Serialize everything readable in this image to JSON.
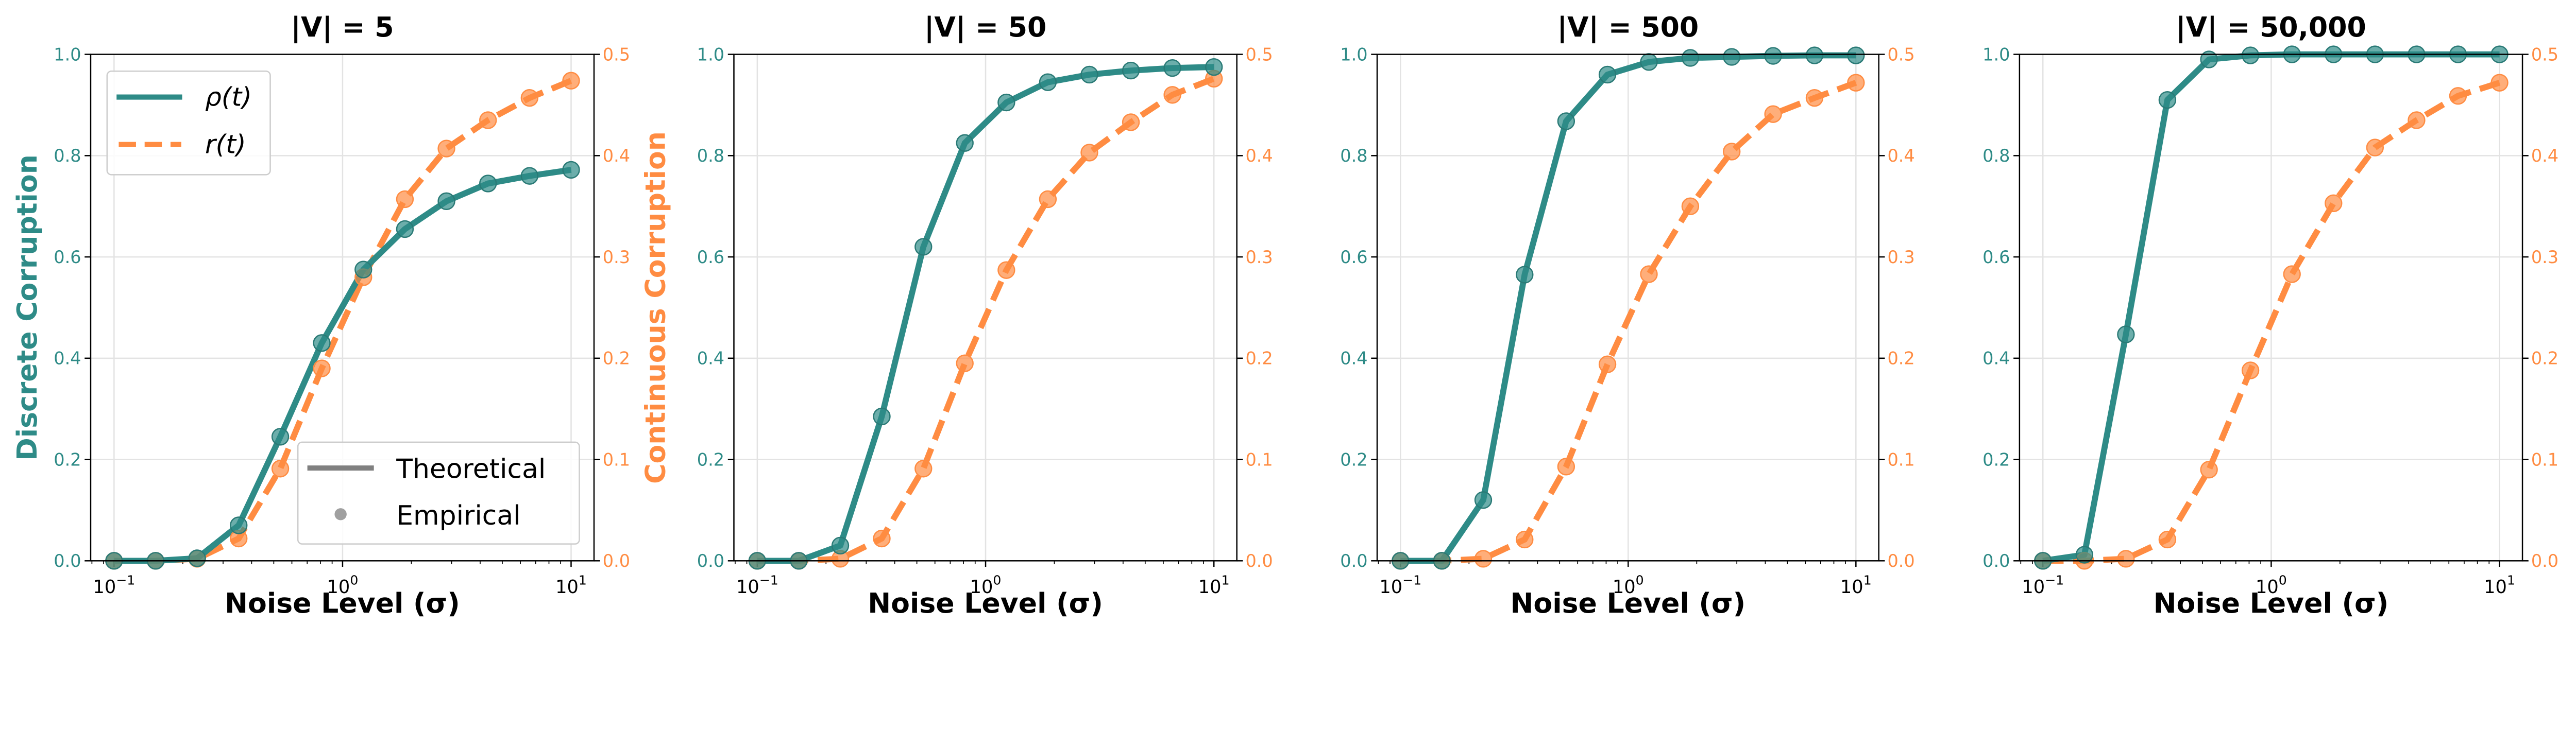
{
  "chart_data": {
    "type": "line",
    "shared": {
      "x": [
        0.1,
        0.152,
        0.231,
        0.351,
        0.534,
        0.811,
        1.233,
        1.874,
        2.848,
        4.329,
        6.579,
        10
      ],
      "xlabel": "Noise Level (σ)",
      "x_scale": "log",
      "xlim": [
        0.079,
        12.6
      ],
      "xticks": [
        {
          "base": "10",
          "exp": "−1",
          "value": 0.1
        },
        {
          "base": "10",
          "exp": "0",
          "value": 1
        },
        {
          "base": "10",
          "exp": "1",
          "value": 10
        }
      ],
      "ylabel_left": "Discrete Corruption",
      "ylabel_right": "Continuous Corruption",
      "ylim_left": [
        0,
        1.0
      ],
      "ylim_right": [
        0,
        0.5
      ],
      "yticks_left": [
        "0.0",
        "0.2",
        "0.4",
        "0.6",
        "0.8",
        "1.0"
      ],
      "yticks_right": [
        "0.0",
        "0.1",
        "0.2",
        "0.3",
        "0.4",
        "0.5"
      ],
      "grid": true,
      "colors": {
        "discrete": "#2e8b87",
        "continuous": "#ff8c42"
      }
    },
    "legend": {
      "series_entries": [
        "ρ(t)",
        "r(t)"
      ],
      "style_entries": [
        "Theoretical",
        "Empirical"
      ],
      "placement": [
        "upper-left",
        "lower-right"
      ]
    },
    "panels": [
      {
        "title": "|V| = 5",
        "rho": [
          0,
          0,
          0.005,
          0.07,
          0.245,
          0.43,
          0.575,
          0.655,
          0.71,
          0.745,
          0.76,
          0.772
        ],
        "r": [
          0,
          0,
          0.002,
          0.022,
          0.091,
          0.19,
          0.28,
          0.357,
          0.407,
          0.435,
          0.457,
          0.474
        ]
      },
      {
        "title": "|V| = 50",
        "rho": [
          0,
          0,
          0.03,
          0.285,
          0.62,
          0.825,
          0.905,
          0.945,
          0.96,
          0.968,
          0.973,
          0.975
        ],
        "r": [
          0,
          0,
          0.002,
          0.022,
          0.091,
          0.195,
          0.287,
          0.357,
          0.403,
          0.433,
          0.46,
          0.476
        ]
      },
      {
        "title": "|V| = 500",
        "rho": [
          0,
          0,
          0.12,
          0.565,
          0.868,
          0.96,
          0.985,
          0.993,
          0.995,
          0.997,
          0.998,
          0.998
        ],
        "r": [
          0,
          0,
          0.002,
          0.021,
          0.093,
          0.194,
          0.283,
          0.35,
          0.404,
          0.441,
          0.457,
          0.472
        ]
      },
      {
        "title": "|V| = 50,000",
        "rho": [
          0,
          0.012,
          0.447,
          0.91,
          0.99,
          0.998,
          1,
          1,
          1,
          1,
          1,
          1
        ],
        "r": [
          0,
          0,
          0.002,
          0.021,
          0.09,
          0.188,
          0.283,
          0.353,
          0.408,
          0.435,
          0.459,
          0.472
        ]
      }
    ]
  }
}
